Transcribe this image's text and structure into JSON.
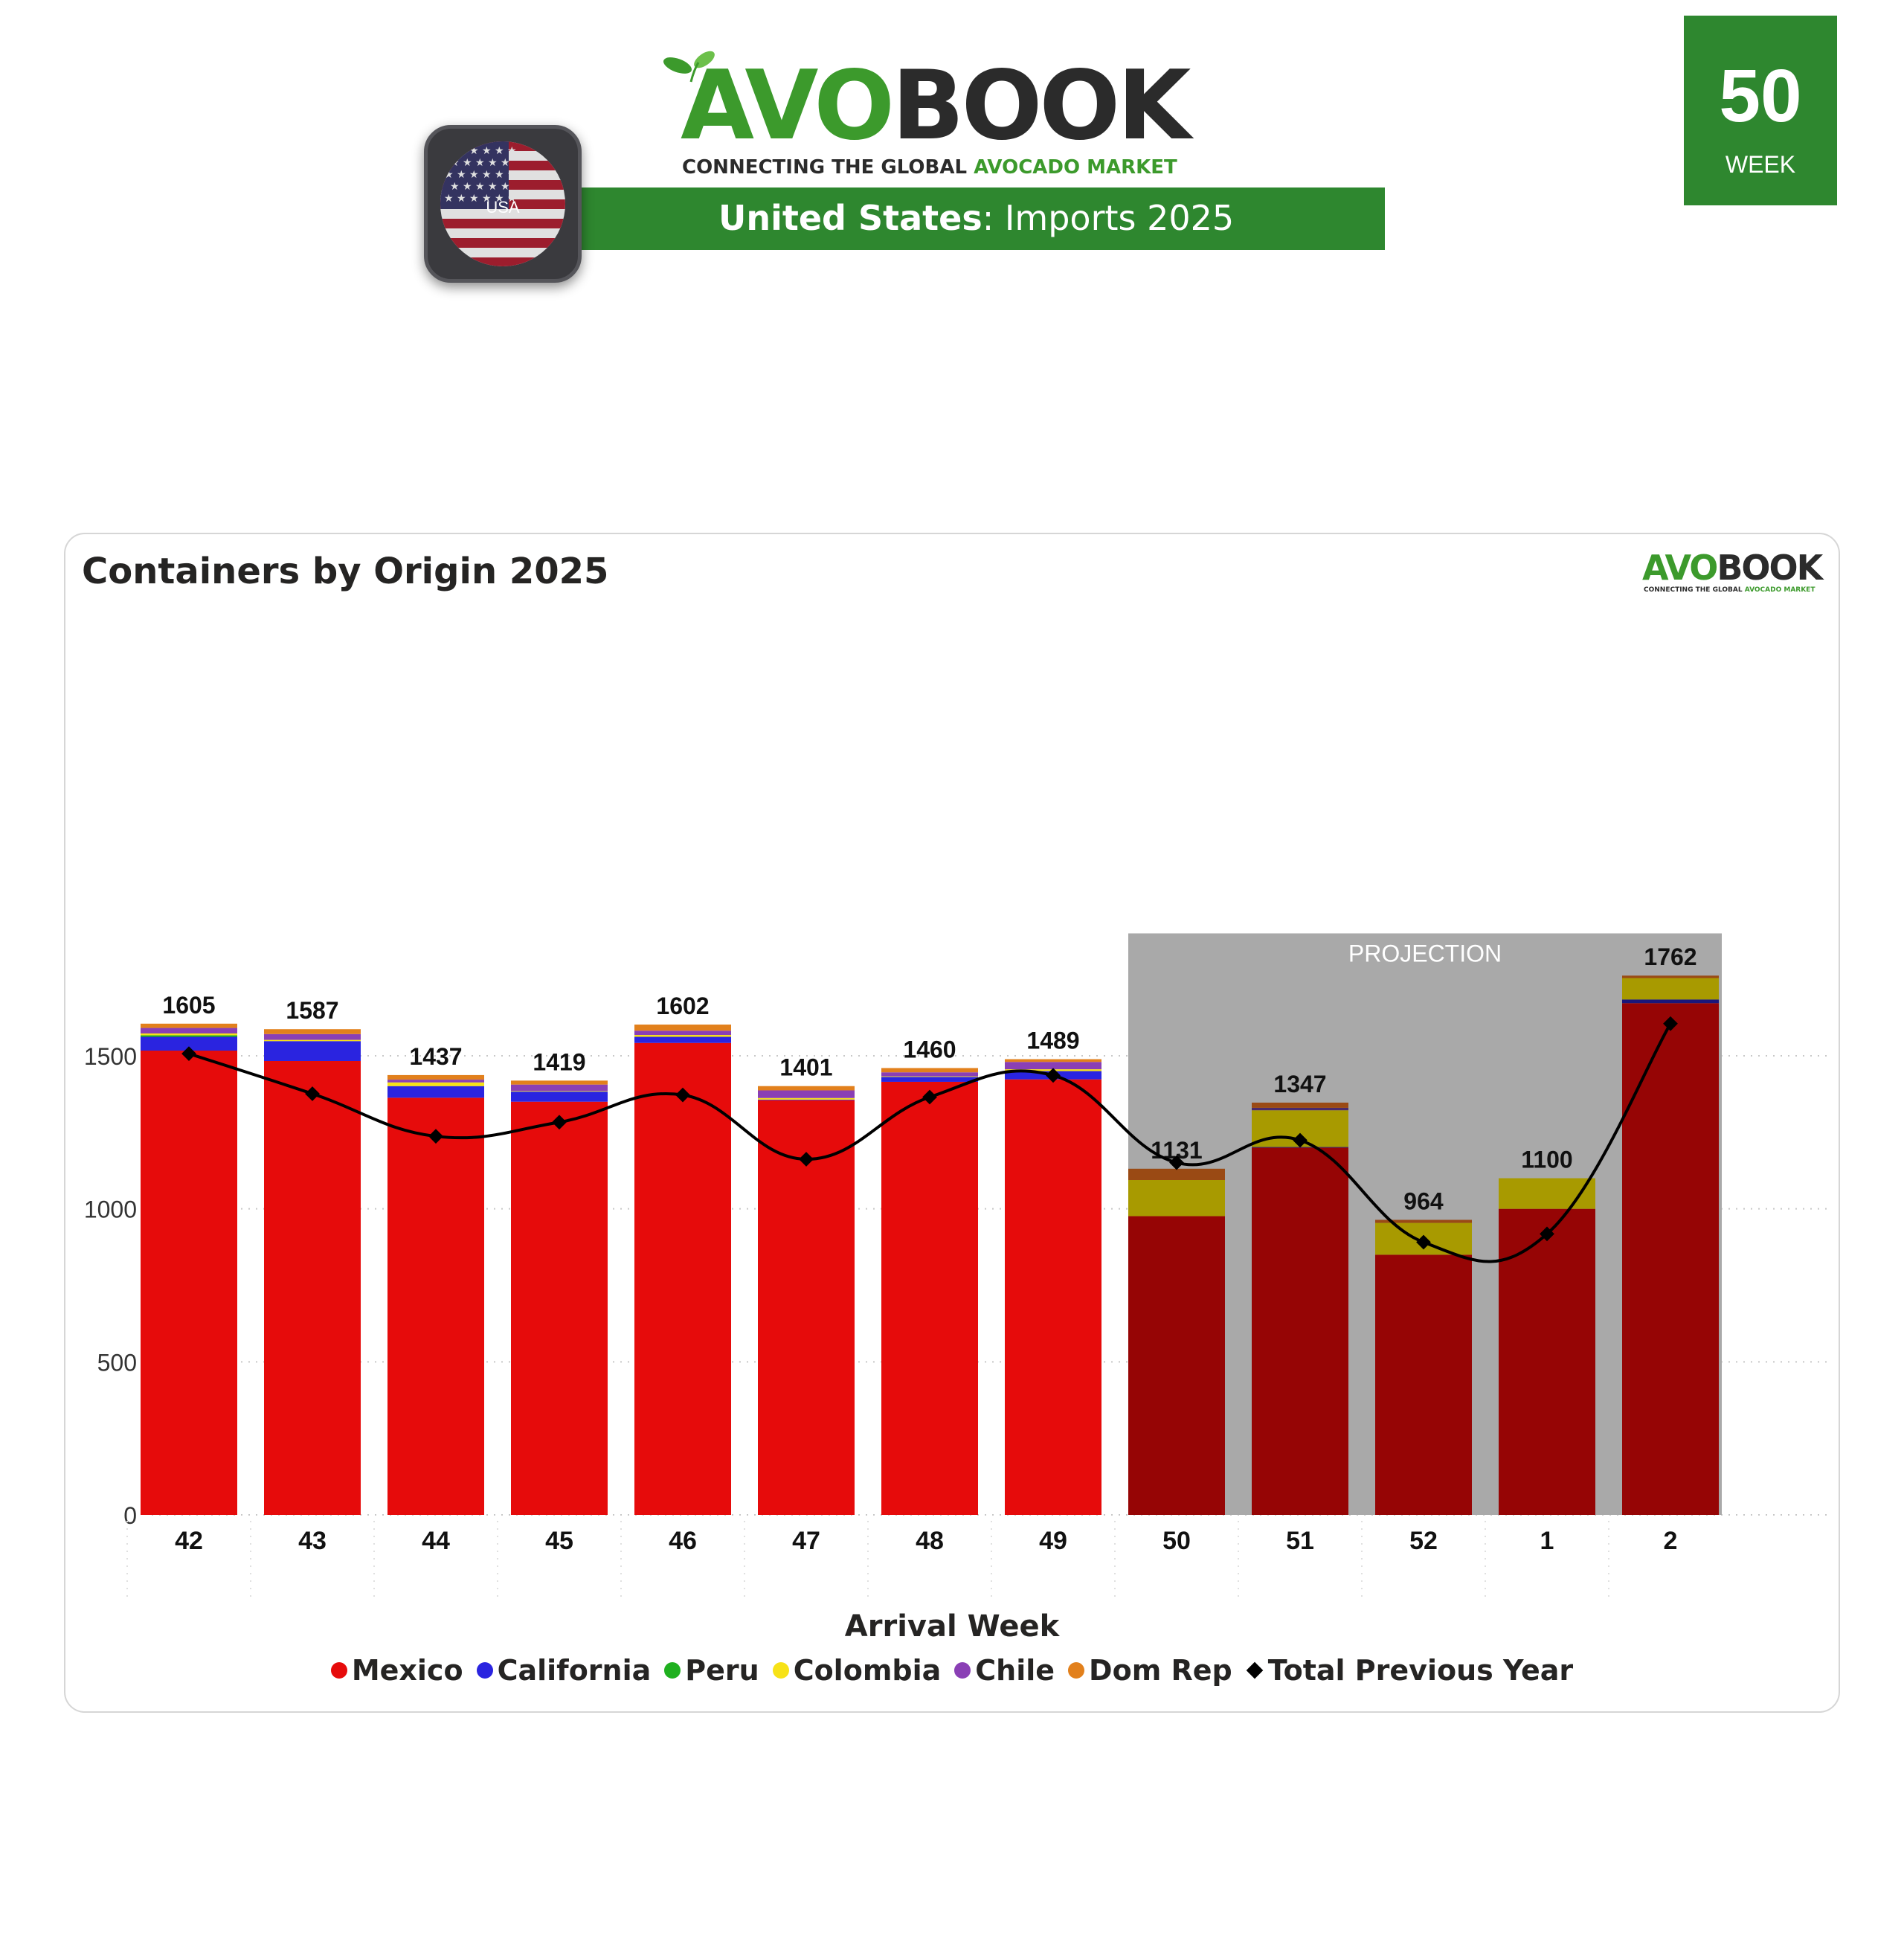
{
  "header": {
    "logo_avo": "AVO",
    "logo_book": "BOOK",
    "tagline_prefix": "CONNECTING THE GLOBAL ",
    "tagline_highlight": "AVOCADO MARKET",
    "country": "United States",
    "subtitle_suffix": ": Imports 2025",
    "flag_label": "USA",
    "week_number": "50",
    "week_label": "WEEK",
    "brand_green": "#2e872f"
  },
  "chart_data": {
    "type": "bar",
    "stacked": true,
    "title": "Containers by Origin 2025",
    "xlabel": "Arrival Week",
    "ylabel": "",
    "ylim": [
      0,
      1900
    ],
    "yticks": [
      0,
      500,
      1000,
      1500
    ],
    "grid": true,
    "legend_position": "bottom",
    "projection_label": "PROJECTION",
    "projection_categories": [
      "50",
      "51",
      "52",
      "1",
      "2"
    ],
    "categories": [
      "42",
      "43",
      "44",
      "45",
      "46",
      "47",
      "48",
      "49",
      "50",
      "51",
      "52",
      "1",
      "2"
    ],
    "totals": [
      1605,
      1587,
      1437,
      1419,
      1602,
      1401,
      1460,
      1489,
      1131,
      1347,
      964,
      1100,
      1762
    ],
    "series": [
      {
        "name": "Mexico",
        "color": "#e60b0b",
        "projection_color": "#960505",
        "values": [
          1517,
          1483,
          1363,
          1350,
          1542,
          1355,
          1415,
          1423,
          976,
          1200,
          850,
          1000,
          1672
        ]
      },
      {
        "name": "California",
        "color": "#2a24e0",
        "projection_color": "#1a167a",
        "values": [
          45,
          65,
          38,
          33,
          20,
          2,
          16,
          27,
          0,
          2,
          0,
          0,
          12
        ]
      },
      {
        "name": "Peru",
        "color": "#1fb01f",
        "projection_color": "#1fb01f",
        "values": [
          5,
          0,
          0,
          0,
          0,
          0,
          0,
          0,
          0,
          0,
          0,
          0,
          0
        ]
      },
      {
        "name": "Colombia",
        "color": "#f7e217",
        "projection_color": "#a89a00",
        "values": [
          6,
          4,
          12,
          2,
          6,
          5,
          2,
          6,
          118,
          120,
          104,
          100,
          70
        ]
      },
      {
        "name": "Chile",
        "color": "#8a3fb5",
        "projection_color": "#4b2a6a",
        "values": [
          18,
          19,
          9,
          21,
          14,
          25,
          13,
          24,
          0,
          8,
          0,
          0,
          0
        ]
      },
      {
        "name": "Dom Rep",
        "color": "#e2801c",
        "projection_color": "#9a4a14",
        "values": [
          14,
          16,
          15,
          13,
          20,
          14,
          14,
          9,
          37,
          17,
          10,
          0,
          8
        ]
      }
    ],
    "line_series": {
      "name": "Total Previous Year",
      "color": "#000000",
      "values": [
        1507,
        1376,
        1237,
        1283,
        1372,
        1162,
        1365,
        1436,
        1151,
        1224,
        891,
        918,
        1605
      ]
    }
  }
}
